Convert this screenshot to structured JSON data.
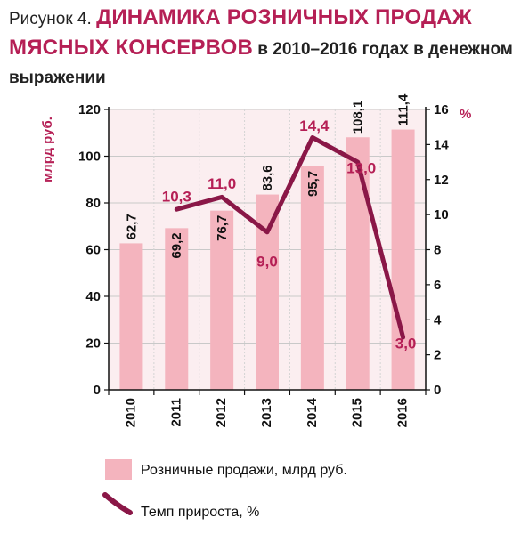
{
  "header": {
    "prefix": "Рисунок 4. ",
    "main": "ДИНАМИКА РОЗНИЧНЫХ ПРОДАЖ МЯСНЫХ КОНСЕРВОВ",
    "sub": " в 2010–2016 годах в денежном выражении"
  },
  "colors": {
    "bar": "#f4b4be",
    "line": "#8a1747",
    "accent": "#b51f55",
    "plot_bg": "#fbeef0"
  },
  "chart_data": {
    "type": "bar",
    "title": "ДИНАМИКА РОЗНИЧНЫХ ПРОДАЖ МЯСНЫХ КОНСЕРВОВ в 2010–2016 годах в денежном выражении",
    "categories": [
      "2010",
      "2011",
      "2012",
      "2013",
      "2014",
      "2015",
      "2016"
    ],
    "series": [
      {
        "name": "Розничные продажи, млрд руб.",
        "type": "bar",
        "axis": "left",
        "values": [
          62.7,
          69.2,
          76.7,
          83.6,
          95.7,
          108.1,
          111.4
        ],
        "labels": [
          "62,7",
          "69,2",
          "76,7",
          "83,6",
          "95,7",
          "108,1",
          "111,4"
        ]
      },
      {
        "name": "Темп прироста, %",
        "type": "line",
        "axis": "right",
        "values": [
          null,
          10.3,
          11.0,
          9.0,
          14.4,
          13.0,
          3.0
        ],
        "labels": [
          "",
          "10,3",
          "11,0",
          "9,0",
          "14,4",
          "13,0",
          "3,0"
        ]
      }
    ],
    "left_axis": {
      "label": "млрд руб.",
      "ylim": [
        0,
        120
      ],
      "ticks": [
        0,
        20,
        40,
        60,
        80,
        100,
        120
      ]
    },
    "right_axis": {
      "label": "%",
      "ylim": [
        0,
        16
      ],
      "ticks": [
        0,
        2,
        4,
        6,
        8,
        10,
        12,
        14,
        16
      ]
    },
    "grid": true,
    "legend": {
      "position": "bottom",
      "items": [
        "Розничные продажи, млрд руб.",
        "Темп прироста, %"
      ]
    }
  }
}
